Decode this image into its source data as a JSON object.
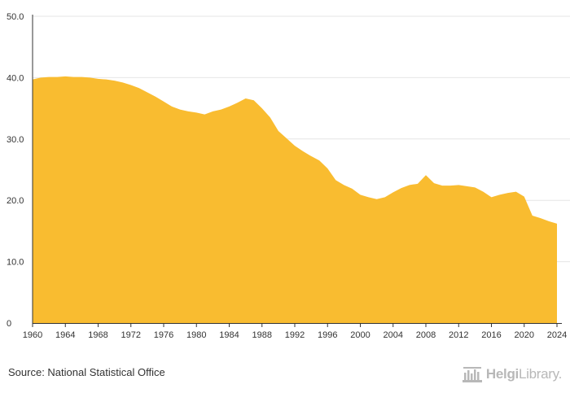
{
  "chart_data": {
    "type": "area",
    "title": "",
    "xlabel": "",
    "ylabel": "",
    "ylim": [
      0,
      50
    ],
    "xlim": [
      1960,
      2024
    ],
    "y_ticks": [
      "0",
      "10.0",
      "20.0",
      "30.0",
      "40.0",
      "50.0"
    ],
    "y_tick_values": [
      0,
      10,
      20,
      30,
      40,
      50
    ],
    "x_ticks": [
      "1960",
      "1964",
      "1968",
      "1972",
      "1976",
      "1980",
      "1984",
      "1988",
      "1992",
      "1996",
      "2000",
      "2004",
      "2008",
      "2012",
      "2016",
      "2020",
      "2024"
    ],
    "x_tick_values": [
      1960,
      1964,
      1968,
      1972,
      1976,
      1980,
      1984,
      1988,
      1992,
      1996,
      2000,
      2004,
      2008,
      2012,
      2016,
      2020,
      2024
    ],
    "grid": true,
    "legend": "none",
    "fill_color": "#f9bc30",
    "grid_color": "#e6e6e6",
    "series": [
      {
        "x": [
          1960,
          1961,
          1962,
          1963,
          1964,
          1965,
          1966,
          1967,
          1968,
          1969,
          1970,
          1971,
          1972,
          1973,
          1974,
          1975,
          1976,
          1977,
          1978,
          1979,
          1980,
          1981,
          1982,
          1983,
          1984,
          1985,
          1986,
          1987,
          1988,
          1989,
          1990,
          1991,
          1992,
          1993,
          1994,
          1995,
          1996,
          1997,
          1998,
          1999,
          2000,
          2001,
          2002,
          2003,
          2004,
          2005,
          2006,
          2007,
          2008,
          2009,
          2010,
          2011,
          2012,
          2013,
          2014,
          2015,
          2016,
          2017,
          2018,
          2019,
          2020,
          2021,
          2022,
          2023,
          2024
        ],
        "values": [
          39.7,
          40.0,
          40.1,
          40.1,
          40.2,
          40.1,
          40.1,
          40.0,
          39.8,
          39.7,
          39.5,
          39.2,
          38.8,
          38.3,
          37.6,
          36.9,
          36.1,
          35.3,
          34.8,
          34.5,
          34.3,
          34.0,
          34.5,
          34.8,
          35.3,
          35.9,
          36.6,
          36.3,
          35.0,
          33.5,
          31.3,
          30.1,
          28.9,
          28.0,
          27.2,
          26.5,
          25.2,
          23.3,
          22.5,
          21.9,
          20.9,
          20.5,
          20.2,
          20.5,
          21.3,
          22.0,
          22.5,
          22.7,
          24.1,
          22.8,
          22.4,
          22.4,
          22.5,
          22.3,
          22.1,
          21.4,
          20.5,
          20.9,
          21.2,
          21.4,
          20.6,
          17.5,
          17.1,
          16.6,
          16.2
        ]
      }
    ]
  },
  "footer": {
    "source": "Source: National Statistical Office",
    "brand_a": "Helgi",
    "brand_b": "Library."
  }
}
